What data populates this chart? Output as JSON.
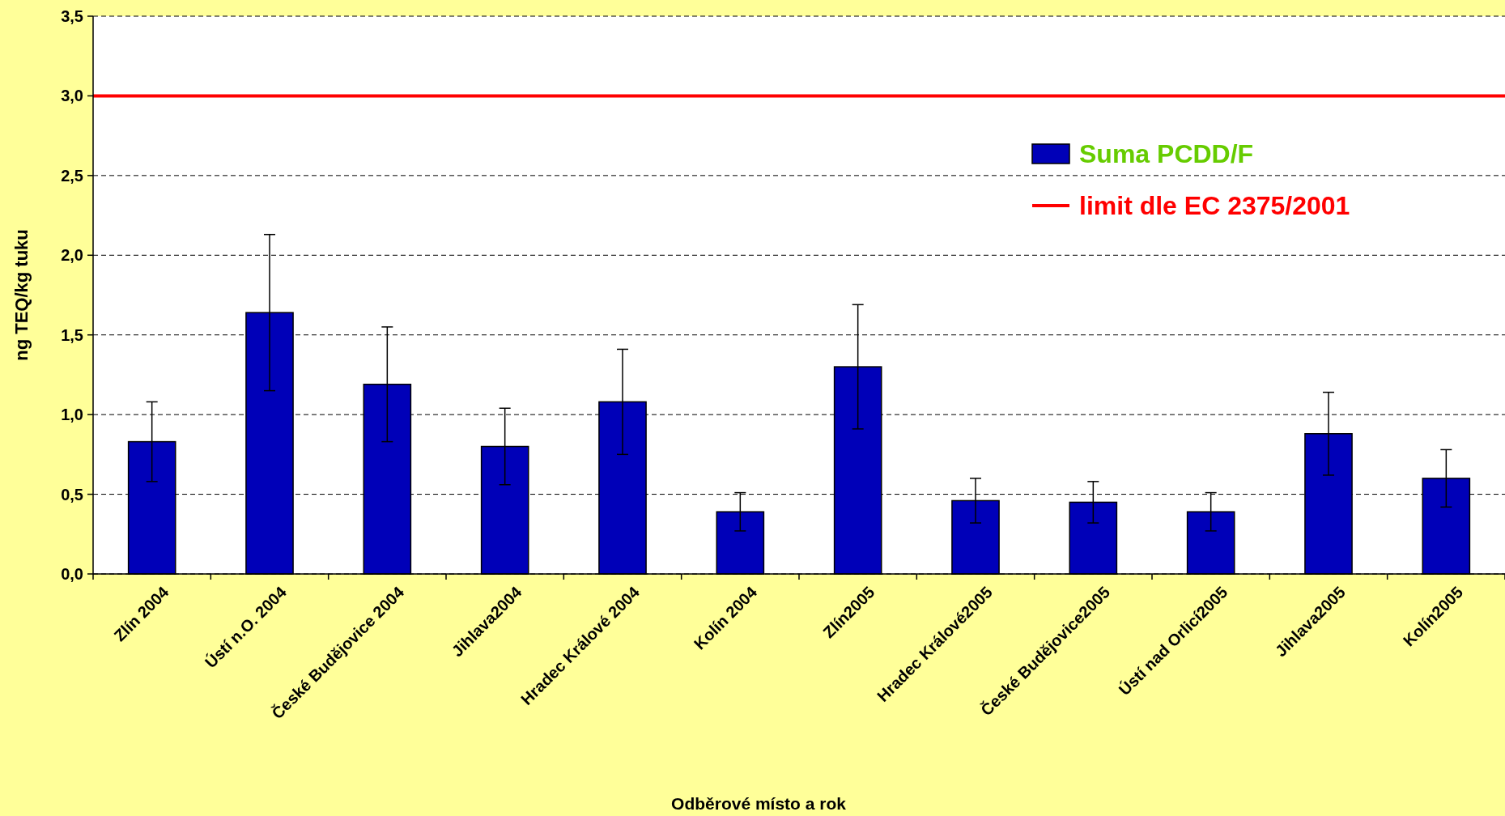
{
  "chart_data": {
    "type": "bar",
    "xlabel": "Odběrové místo a rok",
    "ylabel": "ng TEQ/kg tuku",
    "categories": [
      "Zlín 2004",
      "Ústí n.O. 2004",
      "České Budějovice 2004",
      "Jihlava2004",
      "Hradec Králové 2004",
      "Kolín 2004",
      "Zlín2005",
      "Hradec Králové2005",
      "České Budějovice2005",
      "Ústí nad Orlicí2005",
      "Jihlava2005",
      "Kolín2005"
    ],
    "series": [
      {
        "name": "Suma PCDD/F",
        "color": "#0000b8",
        "values": [
          0.83,
          1.64,
          1.19,
          0.8,
          1.08,
          0.39,
          1.3,
          0.46,
          0.45,
          0.39,
          0.88,
          0.6
        ],
        "errors": [
          0.25,
          0.49,
          0.36,
          0.24,
          0.33,
          0.12,
          0.39,
          0.14,
          0.13,
          0.12,
          0.26,
          0.18
        ]
      }
    ],
    "ylim": [
      0,
      3.5
    ],
    "yticks": [
      {
        "value": 0,
        "label": "0,0"
      },
      {
        "value": 0.5,
        "label": "0,5"
      },
      {
        "value": 1,
        "label": "1,0"
      },
      {
        "value": 1.5,
        "label": "1,5"
      },
      {
        "value": 2,
        "label": "2,0"
      },
      {
        "value": 2.5,
        "label": "2,5"
      },
      {
        "value": 3,
        "label": "3,0"
      },
      {
        "value": 3.5,
        "label": "3,5"
      }
    ],
    "grid": "y",
    "legend": "top right",
    "ref_lines": [
      {
        "axis": "y",
        "value": 3,
        "label": "limit dle EC 2375/2001",
        "color": "#ff0000"
      }
    ]
  }
}
